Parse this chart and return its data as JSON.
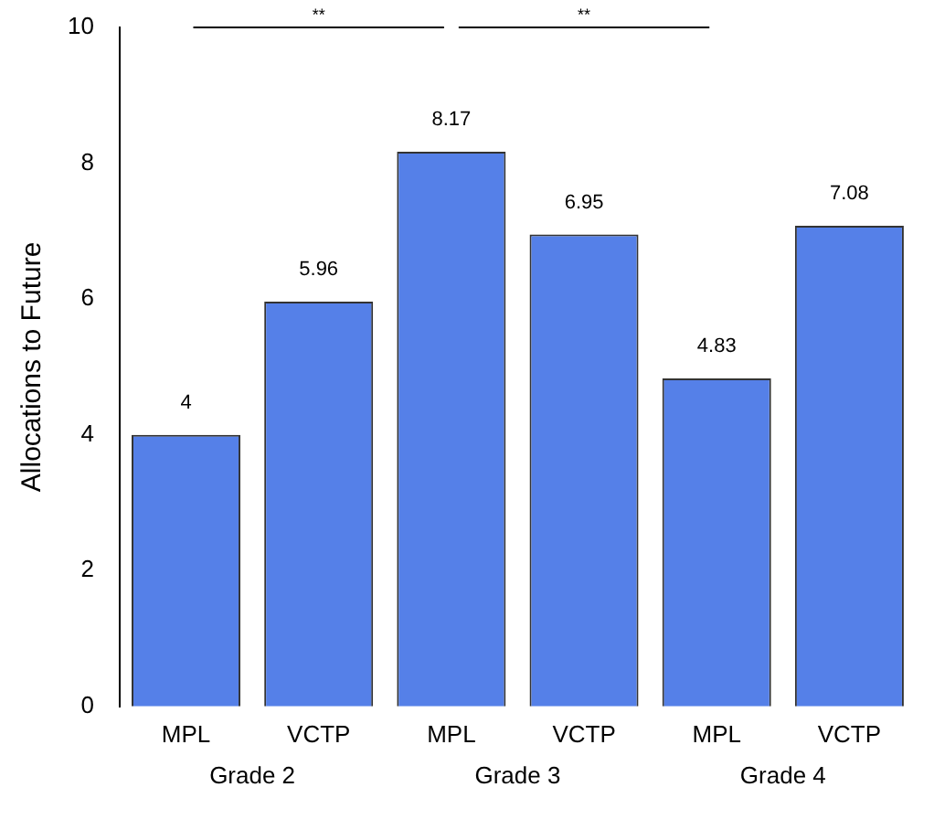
{
  "chart_data": {
    "type": "bar",
    "ylabel": "Allocations to Future",
    "categories": [
      "MPL",
      "VCTP",
      "MPL",
      "VCTP",
      "MPL",
      "VCTP"
    ],
    "values": [
      4,
      5.96,
      8.17,
      6.95,
      4.83,
      7.08
    ],
    "color": "#5580e8",
    "ylim": [
      0,
      10
    ],
    "yticks": [
      0,
      2,
      4,
      6,
      8,
      10
    ],
    "grid": false,
    "legend": false,
    "data_labels": true,
    "annotations": [
      "Grade 2",
      "Grade 3",
      "Grade 4",
      "**",
      "**"
    ]
  }
}
